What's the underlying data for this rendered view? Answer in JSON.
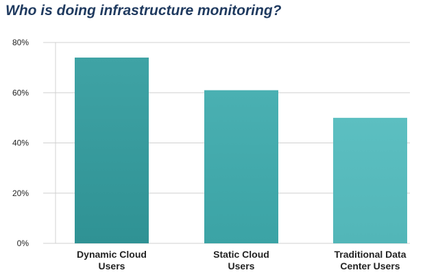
{
  "chart_data": {
    "type": "bar",
    "title": "Who is doing infrastructure monitoring?",
    "categories": [
      [
        "Dynamic Cloud",
        "Users"
      ],
      [
        "Static Cloud",
        "Users"
      ],
      [
        "Traditional Data",
        "Center Users"
      ]
    ],
    "values": [
      74,
      61,
      50
    ],
    "ylim": [
      0,
      80
    ],
    "yticks": [
      0,
      20,
      40,
      60,
      80
    ],
    "ytick_labels": [
      "0%",
      "20%",
      "40%",
      "60%",
      "80%"
    ],
    "xlabel": "",
    "ylabel": "",
    "grid": true,
    "colors": {
      "bar_top": [
        "#3fa3a5",
        "#4ab0b2",
        "#5cbfc1"
      ],
      "bar_bottom": [
        "#2f9294",
        "#3ba3a5",
        "#52b6b8"
      ],
      "grid": "#d0d0d0",
      "title": "#1f3a5f"
    }
  }
}
